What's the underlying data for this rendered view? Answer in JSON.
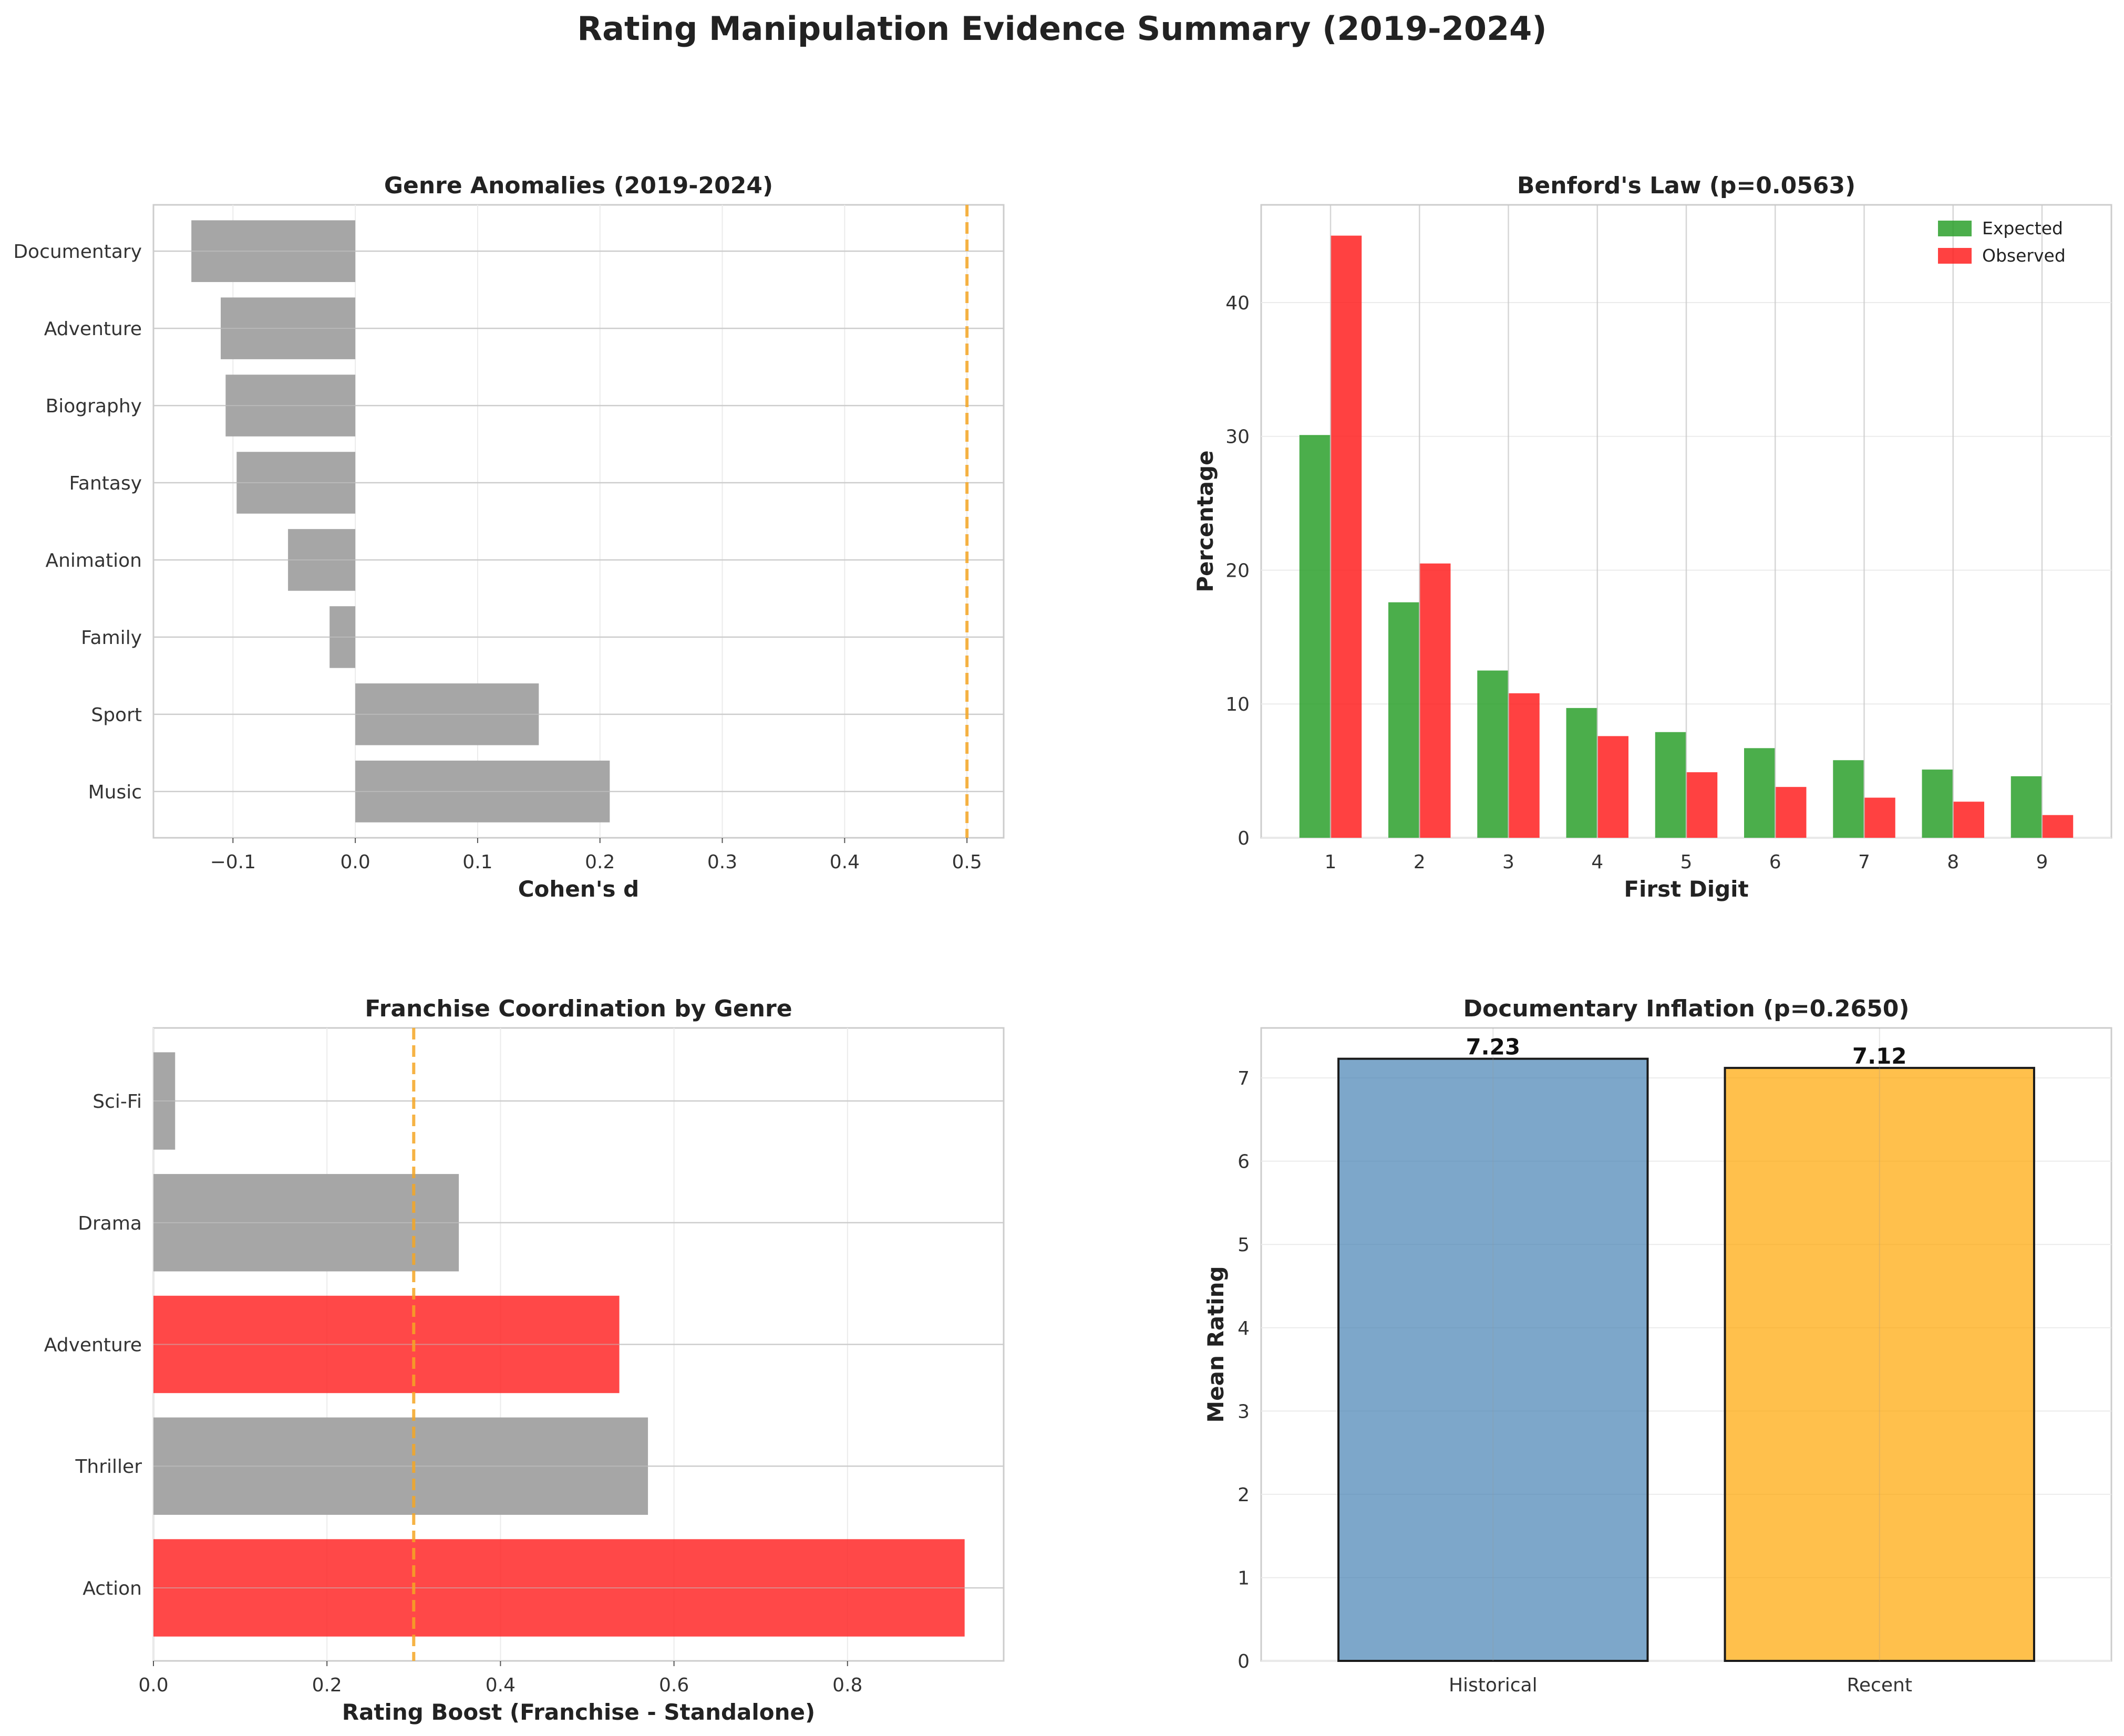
{
  "suptitle": "Rating Manipulation Evidence Summary (2019-2024)",
  "chart_data": [
    {
      "id": "genre",
      "type": "bar",
      "orientation": "horizontal",
      "title": "Genre Anomalies (2019-2024)",
      "xlabel": "Cohen's d",
      "ylabel": "",
      "categories": [
        "Music",
        "Sport",
        "Family",
        "Animation",
        "Fantasy",
        "Biography",
        "Adventure",
        "Documentary"
      ],
      "values": [
        0.208,
        0.15,
        -0.021,
        -0.055,
        -0.097,
        -0.106,
        -0.11,
        -0.134
      ],
      "xlim": [
        -0.165,
        0.53
      ],
      "xticks": [
        -0.1,
        0.0,
        0.1,
        0.2,
        0.3,
        0.4,
        0.5
      ],
      "xtick_labels": [
        "−0.1",
        "0.0",
        "0.1",
        "0.2",
        "0.3",
        "0.4",
        "0.5"
      ],
      "threshold": 0.5,
      "bar_color": "#a6a6a6",
      "threshold_color": "#f5a623",
      "grid": true
    },
    {
      "id": "benford",
      "type": "bar",
      "title": "Benford's Law (p=0.0563)",
      "xlabel": "First Digit",
      "ylabel": "Percentage",
      "categories": [
        "1",
        "2",
        "3",
        "4",
        "5",
        "6",
        "7",
        "8",
        "9"
      ],
      "series": [
        {
          "name": "Expected",
          "color": "#2ca02c",
          "values": [
            30.1,
            17.6,
            12.5,
            9.7,
            7.9,
            6.7,
            5.8,
            5.1,
            4.6
          ]
        },
        {
          "name": "Observed",
          "color": "#ff2020",
          "values": [
            45.0,
            20.5,
            10.8,
            7.6,
            4.9,
            3.8,
            3.0,
            2.7,
            1.7
          ]
        }
      ],
      "ylim": [
        0,
        47.3
      ],
      "yticks": [
        0,
        10,
        20,
        30,
        40
      ],
      "legend": "top-right",
      "grid": true
    },
    {
      "id": "franchise",
      "type": "bar",
      "orientation": "horizontal",
      "title": "Franchise Coordination by Genre",
      "xlabel": "Rating Boost (Franchise - Standalone)",
      "ylabel": "",
      "categories": [
        "Action",
        "Thriller",
        "Adventure",
        "Drama",
        "Sci-Fi"
      ],
      "values": [
        0.935,
        0.57,
        0.537,
        0.352,
        0.025
      ],
      "highlight": [
        true,
        false,
        true,
        false,
        false
      ],
      "xlim": [
        0,
        0.98
      ],
      "xticks": [
        0.0,
        0.2,
        0.4,
        0.6,
        0.8
      ],
      "xtick_labels": [
        "0.0",
        "0.2",
        "0.4",
        "0.6",
        "0.8"
      ],
      "threshold": 0.3,
      "bar_color": "#a6a6a6",
      "highlight_color": "#ff2020",
      "threshold_color": "#f5a623",
      "grid": true
    },
    {
      "id": "doc",
      "type": "bar",
      "title": "Documentary Inflation (p=0.2650)",
      "xlabel": "",
      "ylabel": "Mean Rating",
      "categories": [
        "Historical",
        "Recent"
      ],
      "values": [
        7.23,
        7.12
      ],
      "data_labels": [
        "7.23",
        "7.12"
      ],
      "colors": [
        "#4682b4",
        "#ffa500"
      ],
      "ylim": [
        0,
        7.6
      ],
      "yticks": [
        0,
        1,
        2,
        3,
        4,
        5,
        6,
        7
      ],
      "grid": true
    }
  ]
}
